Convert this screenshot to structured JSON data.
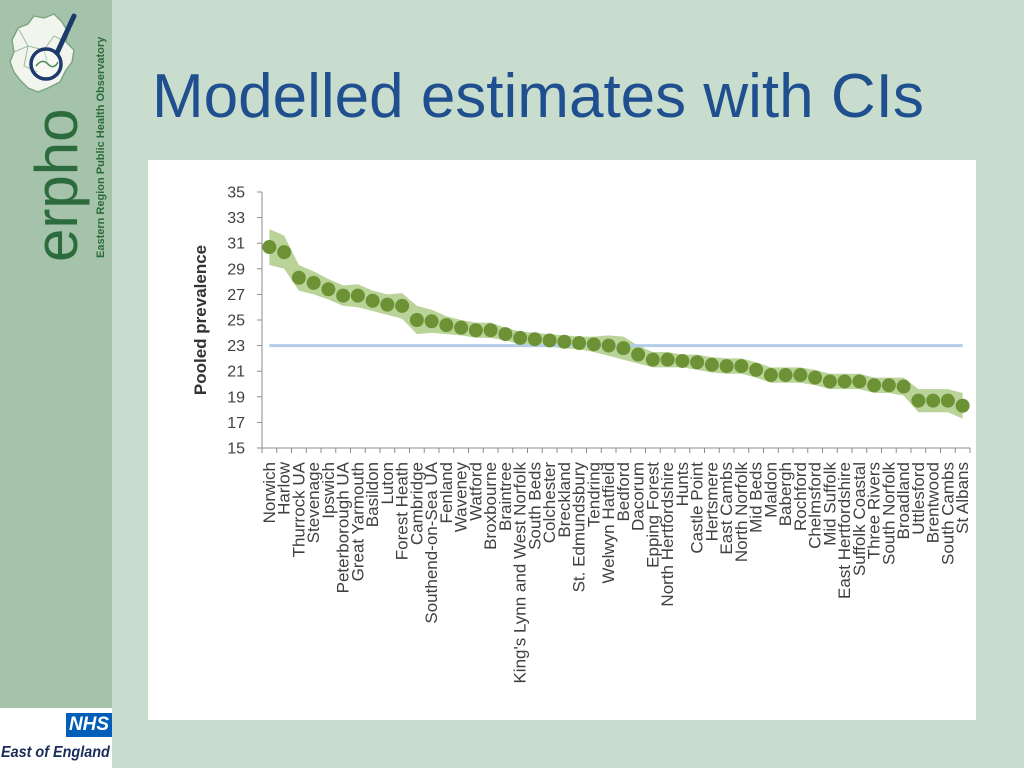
{
  "slide": {
    "title": "Modelled estimates with CIs"
  },
  "branding": {
    "logo_icon": "map-magnifier-icon",
    "wordmark": "erpho",
    "tagline": "Eastern Region Public Health Observatory",
    "partner_badge": "NHS",
    "partner_region": "East of England"
  },
  "colors": {
    "slide_background": "#c8ddcd",
    "sidebar_background": "#a4c3aa",
    "title": "#1f4f8f",
    "wordmark": "#2b6b3c",
    "nhs_blue": "#005eb8",
    "point": "#6d9236",
    "ci_band": "#b9d398",
    "reference_line": "#b4cde6",
    "axis": "#8c8c8c",
    "axis_text": "#404040"
  },
  "chart_data": {
    "type": "scatter",
    "categories": [
      "Norwich",
      "Harlow",
      "Thurrock UA",
      "Stevenage",
      "Ipswich",
      "Peterborough UA",
      "Great Yarmouth",
      "Basildon",
      "Luton",
      "Forest Heath",
      "Cambridge",
      "Southend-on-Sea UA",
      "Fenland",
      "Waveney",
      "Watford",
      "Broxbourne",
      "Braintree",
      "King's Lynn and West Norfolk",
      "South Beds",
      "Colchester",
      "Breckland",
      "St. Edmundsbury",
      "Tendring",
      "Welwyn Hatfield",
      "Bedford",
      "Dacorum",
      "Epping Forest",
      "North Hertfordshire",
      "Hunts",
      "Castle Point",
      "Hertsmere",
      "East Cambs",
      "North Norfolk",
      "Mid Beds",
      "Maldon",
      "Babergh",
      "Rochford",
      "Chelmsford",
      "Mid Suffolk",
      "East Hertfordshire",
      "Suffolk Coastal",
      "Three Rivers",
      "South Norfolk",
      "Broadland",
      "Uttlesford",
      "Brentwood",
      "South Cambs",
      "St Albans"
    ],
    "values": [
      30.7,
      30.3,
      28.3,
      27.9,
      27.4,
      26.9,
      26.9,
      26.5,
      26.2,
      26.1,
      25.0,
      24.9,
      24.6,
      24.4,
      24.2,
      24.2,
      23.9,
      23.6,
      23.5,
      23.4,
      23.3,
      23.2,
      23.1,
      23.0,
      22.8,
      22.3,
      21.9,
      21.9,
      21.8,
      21.7,
      21.5,
      21.4,
      21.4,
      21.1,
      20.7,
      20.7,
      20.7,
      20.5,
      20.2,
      20.2,
      20.2,
      19.9,
      19.9,
      19.8,
      18.7,
      18.7,
      18.7,
      18.3
    ],
    "lower": [
      29.3,
      29.0,
      27.3,
      27.0,
      26.6,
      26.1,
      26.0,
      25.7,
      25.4,
      25.1,
      23.9,
      24.0,
      23.9,
      23.8,
      23.6,
      23.6,
      23.4,
      23.1,
      23.0,
      22.9,
      22.8,
      22.7,
      22.5,
      22.2,
      21.9,
      21.6,
      21.3,
      21.3,
      21.3,
      21.1,
      20.9,
      20.8,
      20.8,
      20.5,
      20.1,
      20.1,
      20.1,
      19.9,
      19.6,
      19.6,
      19.6,
      19.3,
      19.3,
      19.1,
      17.8,
      17.8,
      17.8,
      17.3
    ],
    "upper": [
      32.1,
      31.6,
      29.3,
      28.8,
      28.2,
      27.7,
      27.8,
      27.3,
      27.0,
      27.1,
      26.1,
      25.8,
      25.3,
      25.0,
      24.8,
      24.8,
      24.4,
      24.1,
      24.0,
      23.9,
      23.8,
      23.7,
      23.7,
      23.8,
      23.7,
      23.0,
      22.5,
      22.5,
      22.3,
      22.3,
      22.1,
      22.0,
      22.0,
      21.7,
      21.3,
      21.3,
      21.3,
      21.1,
      20.8,
      20.8,
      20.8,
      20.5,
      20.5,
      20.5,
      19.6,
      19.6,
      19.6,
      19.3
    ],
    "reference_line": 23,
    "ylabel": "Pooled prevalence",
    "ylim": [
      15,
      35
    ],
    "yticks": [
      15,
      17,
      19,
      21,
      23,
      25,
      27,
      29,
      31,
      33,
      35
    ],
    "grid": false,
    "legend": "none"
  }
}
